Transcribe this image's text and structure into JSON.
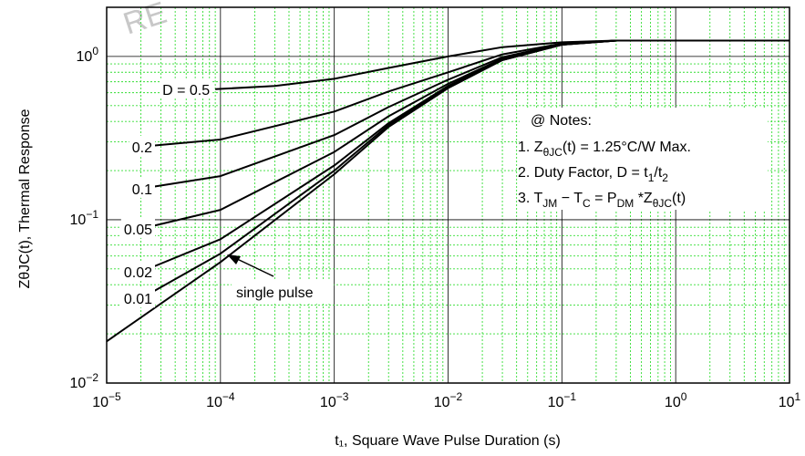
{
  "chart_data": {
    "type": "line",
    "xscale": "log",
    "yscale": "log",
    "xlim": [
      1e-05,
      10
    ],
    "ylim": [
      0.01,
      2
    ],
    "grid": true,
    "xlabel": "t₁, Square Wave Pulse Duration (s)",
    "ylabel": "ZθJC(t), Thermal Response",
    "x_ticks": [
      {
        "base": "10",
        "exp": "−5"
      },
      {
        "base": "10",
        "exp": "−4"
      },
      {
        "base": "10",
        "exp": "−3"
      },
      {
        "base": "10",
        "exp": "−2"
      },
      {
        "base": "10",
        "exp": "−1"
      },
      {
        "base": "10",
        "exp": "0"
      },
      {
        "base": "10",
        "exp": "1"
      }
    ],
    "y_ticks": [
      {
        "base": "10",
        "exp": "0"
      },
      {
        "base": "10",
        "exp": "−1"
      },
      {
        "base": "10",
        "exp": "−2"
      }
    ],
    "notes": {
      "title": "@ Notes:",
      "n1_pre": "1. Z",
      "n1_sub": "θJC",
      "n1_post": "(t) = 1.25°C/W Max.",
      "n2_pre": "2. Duty Factor, D = t",
      "n2_sub1": "1",
      "n2_mid": "/t",
      "n2_sub2": "2",
      "n3_pre": "3. T",
      "n3_sub1": "JM",
      "n3_mid1": " − T",
      "n3_sub2": "C",
      "n3_mid2": " = P",
      "n3_sub3": "DM",
      "n3_mid3": " *Z",
      "n3_sub4": "θJC",
      "n3_post": "(t)"
    },
    "annotation": "single pulse",
    "watermark": "RE",
    "series": [
      {
        "name": "D = 0.5",
        "x": [
          9e-05,
          0.0003,
          0.001,
          0.003,
          0.01,
          0.03,
          0.1,
          0.3,
          1,
          10
        ],
        "y": [
          0.63,
          0.66,
          0.73,
          0.85,
          1.0,
          1.14,
          1.22,
          1.25,
          1.25,
          1.25
        ]
      },
      {
        "name": "0.2",
        "x": [
          2e-05,
          0.0001,
          0.001,
          0.003,
          0.01,
          0.03,
          0.1,
          0.3,
          1,
          10
        ],
        "y": [
          0.28,
          0.31,
          0.46,
          0.61,
          0.8,
          1.03,
          1.2,
          1.25,
          1.25,
          1.25
        ]
      },
      {
        "name": "0.1",
        "x": [
          2e-05,
          0.0001,
          0.001,
          0.003,
          0.01,
          0.03,
          0.1,
          0.3,
          1,
          10
        ],
        "y": [
          0.155,
          0.185,
          0.33,
          0.49,
          0.72,
          0.99,
          1.19,
          1.25,
          1.25,
          1.25
        ]
      },
      {
        "name": "0.05",
        "x": [
          2e-05,
          0.0001,
          0.001,
          0.003,
          0.01,
          0.03,
          0.1,
          0.3,
          1,
          10
        ],
        "y": [
          0.088,
          0.115,
          0.26,
          0.43,
          0.68,
          0.97,
          1.19,
          1.25,
          1.25,
          1.25
        ]
      },
      {
        "name": "0.02",
        "x": [
          2e-05,
          0.0001,
          0.001,
          0.003,
          0.01,
          0.03,
          0.1,
          0.3,
          1,
          10
        ],
        "y": [
          0.048,
          0.076,
          0.215,
          0.39,
          0.66,
          0.96,
          1.18,
          1.25,
          1.25,
          1.25
        ]
      },
      {
        "name": "0.01",
        "x": [
          2e-05,
          0.0001,
          0.001,
          0.003,
          0.01,
          0.03,
          0.1,
          0.3,
          1,
          10
        ],
        "y": [
          0.033,
          0.062,
          0.2,
          0.38,
          0.65,
          0.95,
          1.18,
          1.25,
          1.25,
          1.25
        ]
      },
      {
        "name": "single pulse",
        "x": [
          1e-05,
          0.0001,
          0.001,
          0.003,
          0.01,
          0.03,
          0.1,
          0.3,
          1,
          10
        ],
        "y": [
          0.018,
          0.055,
          0.19,
          0.37,
          0.64,
          0.95,
          1.18,
          1.25,
          1.25,
          1.25
        ]
      }
    ]
  }
}
